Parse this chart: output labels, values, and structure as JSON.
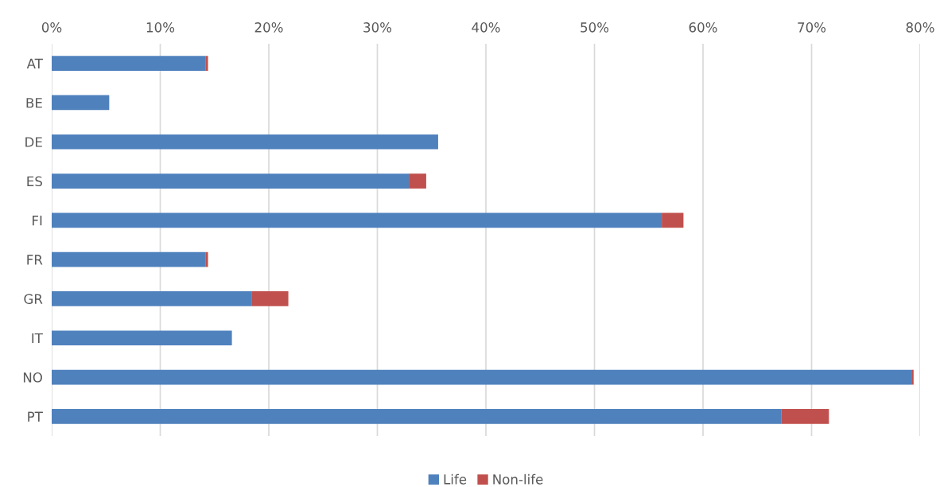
{
  "chart_data": {
    "type": "bar",
    "orientation": "horizontal",
    "stacked": true,
    "categories": [
      "AT",
      "BE",
      "DE",
      "ES",
      "FI",
      "FR",
      "GR",
      "IT",
      "NO",
      "PT"
    ],
    "series": [
      {
        "name": "Life",
        "color": "#4f81bd",
        "values": [
          14.2,
          5.3,
          35.6,
          32.9,
          56.2,
          14.2,
          18.4,
          16.6,
          79.2,
          67.2
        ]
      },
      {
        "name": "Non-life",
        "color": "#c0504d",
        "values": [
          0.2,
          0,
          0,
          1.6,
          2.0,
          0.2,
          3.4,
          0,
          0.2,
          4.4
        ]
      }
    ],
    "xlim": [
      0,
      80
    ],
    "xticks": [
      {
        "value": 0,
        "label": "0%"
      },
      {
        "value": 10,
        "label": "10%"
      },
      {
        "value": 20,
        "label": "20%"
      },
      {
        "value": 30,
        "label": "30%"
      },
      {
        "value": 40,
        "label": "40%"
      },
      {
        "value": 50,
        "label": "50%"
      },
      {
        "value": 60,
        "label": "60%"
      },
      {
        "value": 70,
        "label": "70%"
      },
      {
        "value": 80,
        "label": "80%"
      }
    ],
    "grid": "x",
    "legend": "bottom"
  }
}
